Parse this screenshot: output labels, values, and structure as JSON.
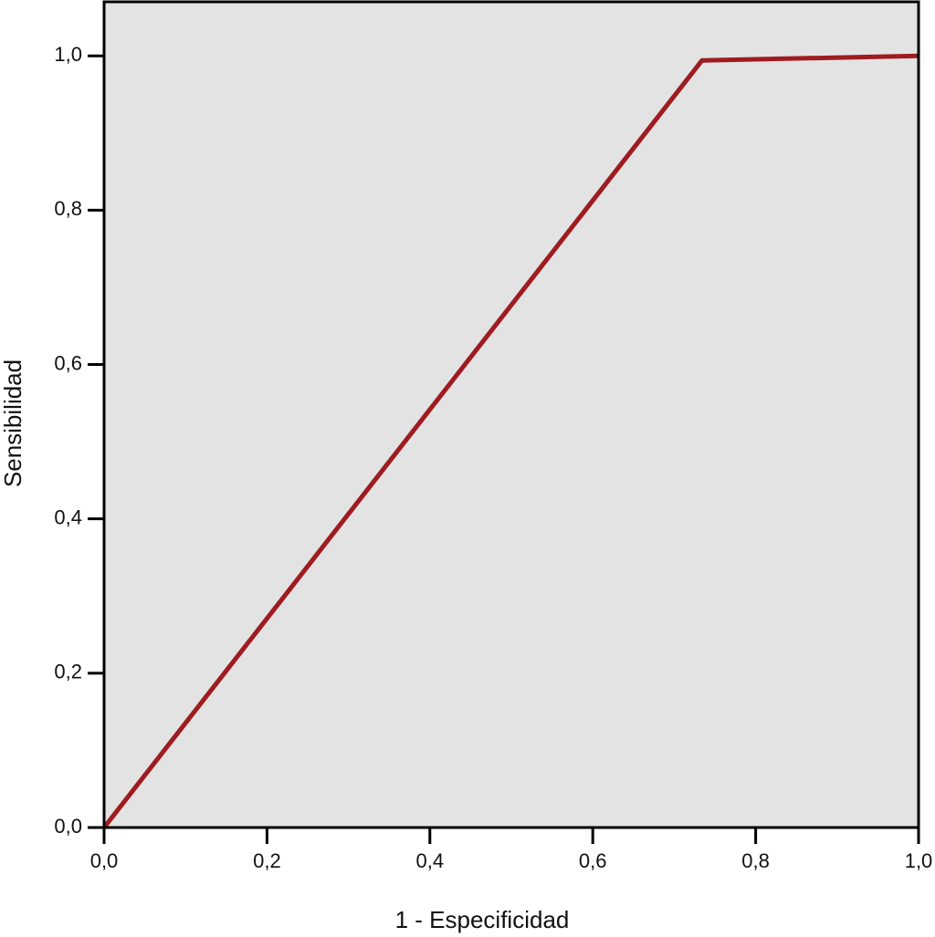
{
  "chart_data": {
    "type": "line",
    "xlabel": "1 - Especificidad",
    "ylabel": "Sensibilidad",
    "x": [
      0,
      0.734,
      1
    ],
    "series": [
      {
        "color": "#9e1c20",
        "values": [
          0,
          0.994,
          1
        ]
      }
    ],
    "xlim": [
      0,
      1
    ],
    "ylim": [
      0,
      1.07
    ],
    "xticks": [
      {
        "value": 0,
        "label": "0,0"
      },
      {
        "value": 0.2,
        "label": "0,2"
      },
      {
        "value": 0.4,
        "label": "0,4"
      },
      {
        "value": 0.6,
        "label": "0,6"
      },
      {
        "value": 0.8,
        "label": "0,8"
      },
      {
        "value": 1,
        "label": "1,0"
      }
    ],
    "yticks": [
      {
        "value": 0,
        "label": "0,0"
      },
      {
        "value": 0.2,
        "label": "0,2"
      },
      {
        "value": 0.4,
        "label": "0,4"
      },
      {
        "value": 0.6,
        "label": "0,6"
      },
      {
        "value": 0.8,
        "label": "0,8"
      },
      {
        "value": 1,
        "label": "1,0"
      }
    ],
    "background": "#e4e3e4",
    "grid": false
  }
}
